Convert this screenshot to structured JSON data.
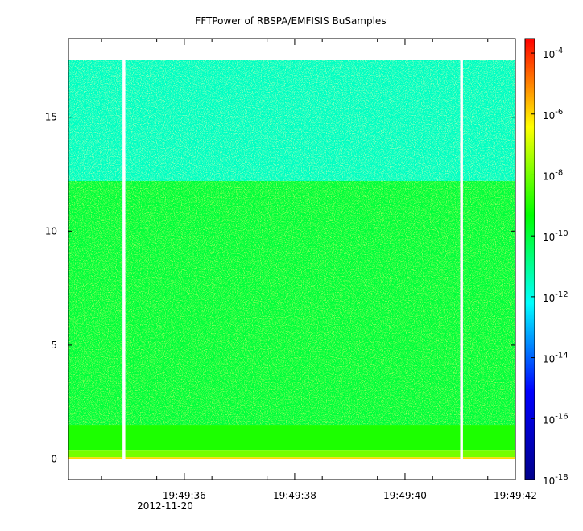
{
  "chart_data": {
    "type": "heatmap",
    "title": "FFTPower of RBSPA/EMFISIS  BuSamples",
    "xlabel": "",
    "ylabel": "",
    "x_ticks": [
      {
        "value": 36,
        "label": "19:49:36"
      },
      {
        "value": 38,
        "label": "19:49:38"
      },
      {
        "value": 40,
        "label": "19:49:40"
      },
      {
        "value": 42,
        "label": "19:49:42"
      }
    ],
    "x_minor_ticks": [
      34.5,
      35.5,
      36.5,
      37.5,
      38.5,
      39.5,
      40.5,
      41.5
    ],
    "x_date_label": "2012-11-20",
    "x_range_seconds": [
      33.9,
      42.0
    ],
    "y_ticks": [
      0,
      5,
      10,
      15
    ],
    "ylim": [
      -0.9,
      18.45
    ],
    "data_extent_y": [
      0,
      17.5
    ],
    "data_gaps_seconds": [
      [
        34.88,
        34.93
      ],
      [
        41.0,
        41.05
      ]
    ],
    "colorbar": {
      "scale": "log",
      "range": [
        1e-18,
        0.0003
      ],
      "tick_values": [
        0.0001,
        1e-06,
        1e-08,
        1e-10,
        1e-12,
        1e-14,
        1e-16,
        1e-18
      ],
      "ticks": [
        {
          "base": "10",
          "exp": "-4"
        },
        {
          "base": "10",
          "exp": "-6"
        },
        {
          "base": "10",
          "exp": "-8"
        },
        {
          "base": "10",
          "exp": "-10"
        },
        {
          "base": "10",
          "exp": "-12"
        },
        {
          "base": "10",
          "exp": "-14"
        },
        {
          "base": "10",
          "exp": "-16"
        },
        {
          "base": "10",
          "exp": "-18"
        }
      ],
      "colors": [
        "#00008b",
        "#0000ff",
        "#00ffff",
        "#00ff00",
        "#ffff00",
        "#ff0000"
      ]
    },
    "bands": [
      {
        "y_range": [
          12.2,
          17.5
        ],
        "power": 3e-12
      },
      {
        "y_range": [
          1.5,
          12.2
        ],
        "power": 1e-10
      },
      {
        "y_range": [
          0.4,
          1.5
        ],
        "power": 1e-09
      },
      {
        "y_range": [
          0.08,
          0.4
        ],
        "power": 1e-08
      },
      {
        "y_range": [
          0,
          0.08
        ],
        "power": 1e-06
      }
    ]
  }
}
